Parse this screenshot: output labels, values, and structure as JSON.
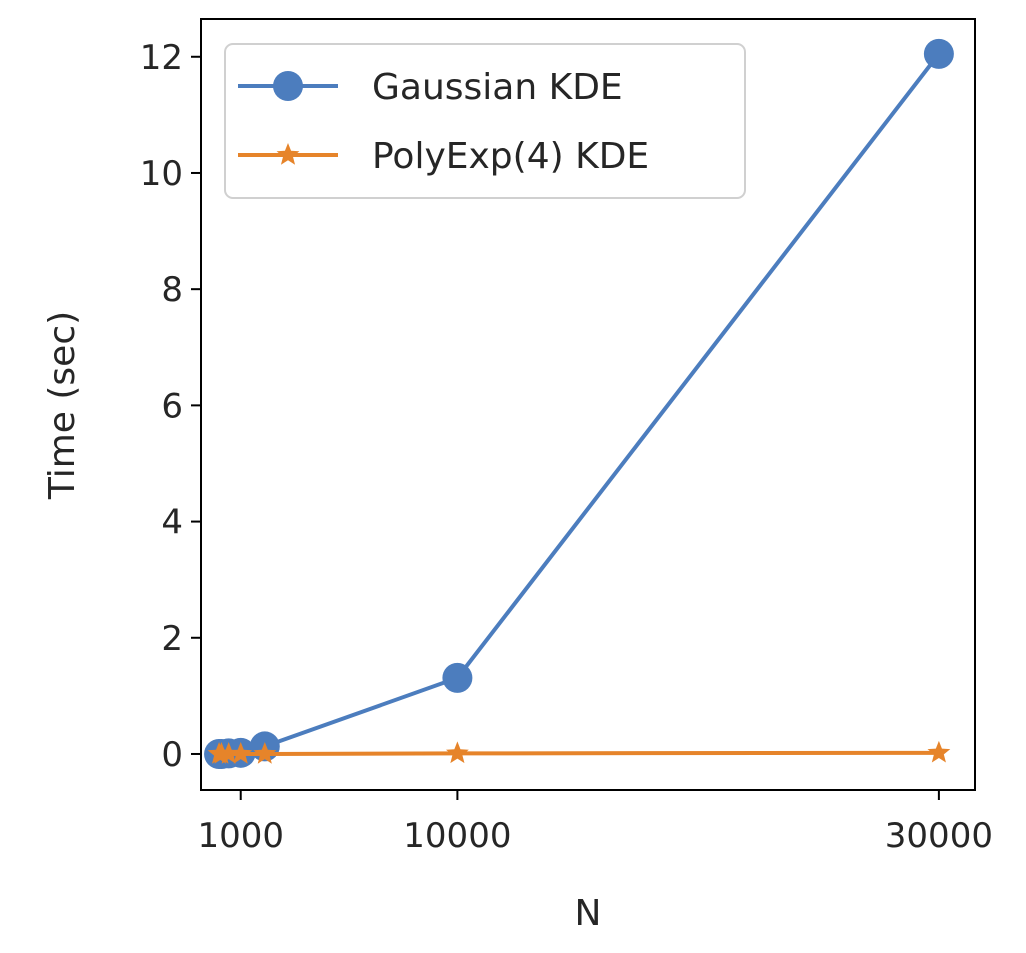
{
  "chart_data": {
    "type": "line",
    "title": "",
    "xlabel": "N",
    "ylabel": "Time (sec)",
    "xlim": [
      -650,
      31500
    ],
    "ylim": [
      -0.62,
      12.65
    ],
    "x_ticks": [
      1000,
      10000,
      30000
    ],
    "x_tick_labels": [
      "1000",
      "10000",
      "30000"
    ],
    "y_ticks": [
      0,
      2,
      4,
      6,
      8,
      10,
      12
    ],
    "y_tick_labels": [
      "0",
      "2",
      "4",
      "6",
      "8",
      "10",
      "12"
    ],
    "grid": false,
    "legend_position": "top-left",
    "series": [
      {
        "name": "Gaussian KDE",
        "color": "#4c7dbe",
        "marker": "circle",
        "x": [
          100,
          200,
          500,
          1000,
          2000,
          10000,
          30000
        ],
        "y": [
          0.0,
          0.0,
          0.01,
          0.02,
          0.13,
          1.31,
          12.05
        ]
      },
      {
        "name": "PolyExp(4) KDE",
        "color": "#e6842a",
        "marker": "star",
        "x": [
          100,
          200,
          500,
          1000,
          2000,
          10000,
          30000
        ],
        "y": [
          0.0,
          0.0,
          0.0,
          0.0,
          0.0,
          0.01,
          0.02
        ]
      }
    ]
  }
}
